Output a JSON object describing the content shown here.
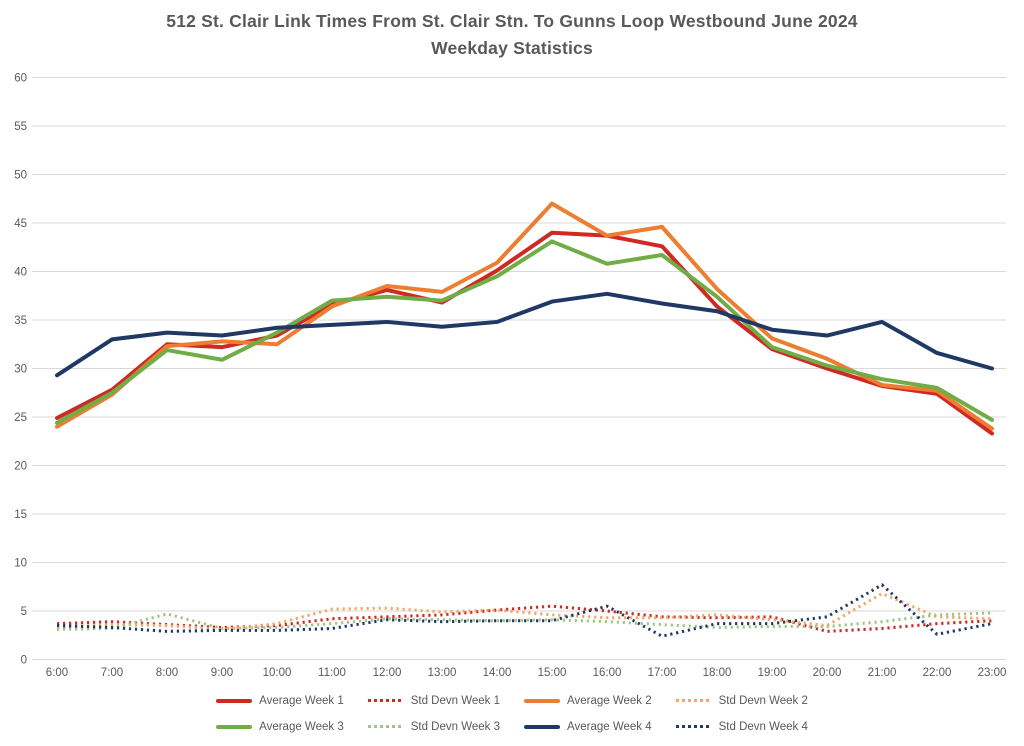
{
  "title": {
    "line1": "512 St. Clair Link Times From St. Clair Stn. To Gunns Loop Westbound June 2024",
    "line2": "Weekday Statistics"
  },
  "colors": {
    "week1_red": "#D02823",
    "week2_orange": "#ED7D31",
    "week2_std_orange_light": "#F0A868",
    "week3_green": "#70AD47",
    "week3_std_green_light": "#A4C487",
    "week4_navy": "#203864",
    "gridline_gray": "#D9D9D9",
    "text_gray": "#595959"
  },
  "chart_data": {
    "type": "line",
    "title": "512 St. Clair Link Times From St. Clair Stn. To Gunns Loop Westbound June 2024 Weekday Statistics",
    "x_labels": [
      "6:00",
      "7:00",
      "8:00",
      "9:00",
      "10:00",
      "11:00",
      "12:00",
      "13:00",
      "14:00",
      "15:00",
      "16:00",
      "17:00",
      "18:00",
      "19:00",
      "20:00",
      "21:00",
      "22:00",
      "23:00"
    ],
    "y_ticks": [
      0,
      5,
      10,
      15,
      20,
      25,
      30,
      35,
      40,
      45,
      50,
      55,
      60
    ],
    "ylim": [
      0,
      60
    ],
    "grid": "horizontal-only",
    "legend_position": "bottom",
    "series": [
      {
        "name": "Average Week 1",
        "color": "#D02823",
        "style": "solid",
        "values": [
          24.9,
          27.8,
          32.5,
          32.2,
          33.4,
          36.6,
          38.1,
          36.8,
          40.1,
          44.0,
          43.7,
          42.6,
          36.4,
          32.0,
          30.0,
          28.2,
          27.4,
          23.3
        ]
      },
      {
        "name": "Std Devn Week 1",
        "color": "#D02823",
        "style": "dotted",
        "values": [
          3.7,
          3.9,
          3.6,
          3.3,
          3.5,
          4.2,
          4.4,
          4.6,
          5.1,
          5.5,
          5.0,
          4.4,
          4.3,
          4.4,
          2.9,
          3.2,
          3.7,
          4.0
        ]
      },
      {
        "name": "Average Week 2",
        "color": "#ED7D31",
        "style": "solid",
        "values": [
          24.0,
          27.3,
          32.3,
          32.8,
          32.5,
          36.4,
          38.5,
          37.9,
          40.9,
          47.0,
          43.7,
          44.6,
          38.2,
          33.1,
          31.0,
          28.3,
          27.7,
          23.8
        ]
      },
      {
        "name": "Std Devn Week 2",
        "color": "#F0A868",
        "style": "dotted",
        "values": [
          3.3,
          3.6,
          3.5,
          3.1,
          3.7,
          5.2,
          5.3,
          4.9,
          5.1,
          4.6,
          4.3,
          4.3,
          4.6,
          4.1,
          3.5,
          6.8,
          4.4,
          4.2
        ]
      },
      {
        "name": "Average Week 3",
        "color": "#70AD47",
        "style": "solid",
        "values": [
          24.4,
          27.5,
          31.9,
          30.9,
          33.7,
          37.0,
          37.4,
          37.0,
          39.5,
          43.1,
          40.8,
          41.7,
          37.4,
          32.2,
          30.3,
          28.9,
          28.0,
          24.7
        ]
      },
      {
        "name": "Std Devn Week 3",
        "color": "#A4C487",
        "style": "dotted",
        "values": [
          3.1,
          3.2,
          4.7,
          3.2,
          3.3,
          3.7,
          4.2,
          4.1,
          4.0,
          4.1,
          3.9,
          3.6,
          3.3,
          3.4,
          3.4,
          3.9,
          4.6,
          4.8
        ]
      },
      {
        "name": "Average Week 4",
        "color": "#203864",
        "style": "solid",
        "values": [
          29.3,
          33.0,
          33.7,
          33.4,
          34.2,
          34.5,
          34.8,
          34.3,
          34.8,
          36.9,
          37.7,
          36.7,
          35.9,
          34.0,
          33.4,
          34.8,
          31.6,
          30.0
        ]
      },
      {
        "name": "Std Devn Week 4",
        "color": "#203864",
        "style": "dotted",
        "values": [
          3.5,
          3.3,
          2.9,
          3.0,
          3.0,
          3.2,
          4.1,
          3.9,
          4.0,
          4.0,
          5.5,
          2.4,
          3.7,
          3.7,
          4.4,
          7.7,
          2.6,
          3.7
        ]
      }
    ]
  },
  "legend": {
    "rows": [
      [
        0,
        1,
        2,
        3
      ],
      [
        4,
        5,
        6,
        7
      ]
    ]
  }
}
